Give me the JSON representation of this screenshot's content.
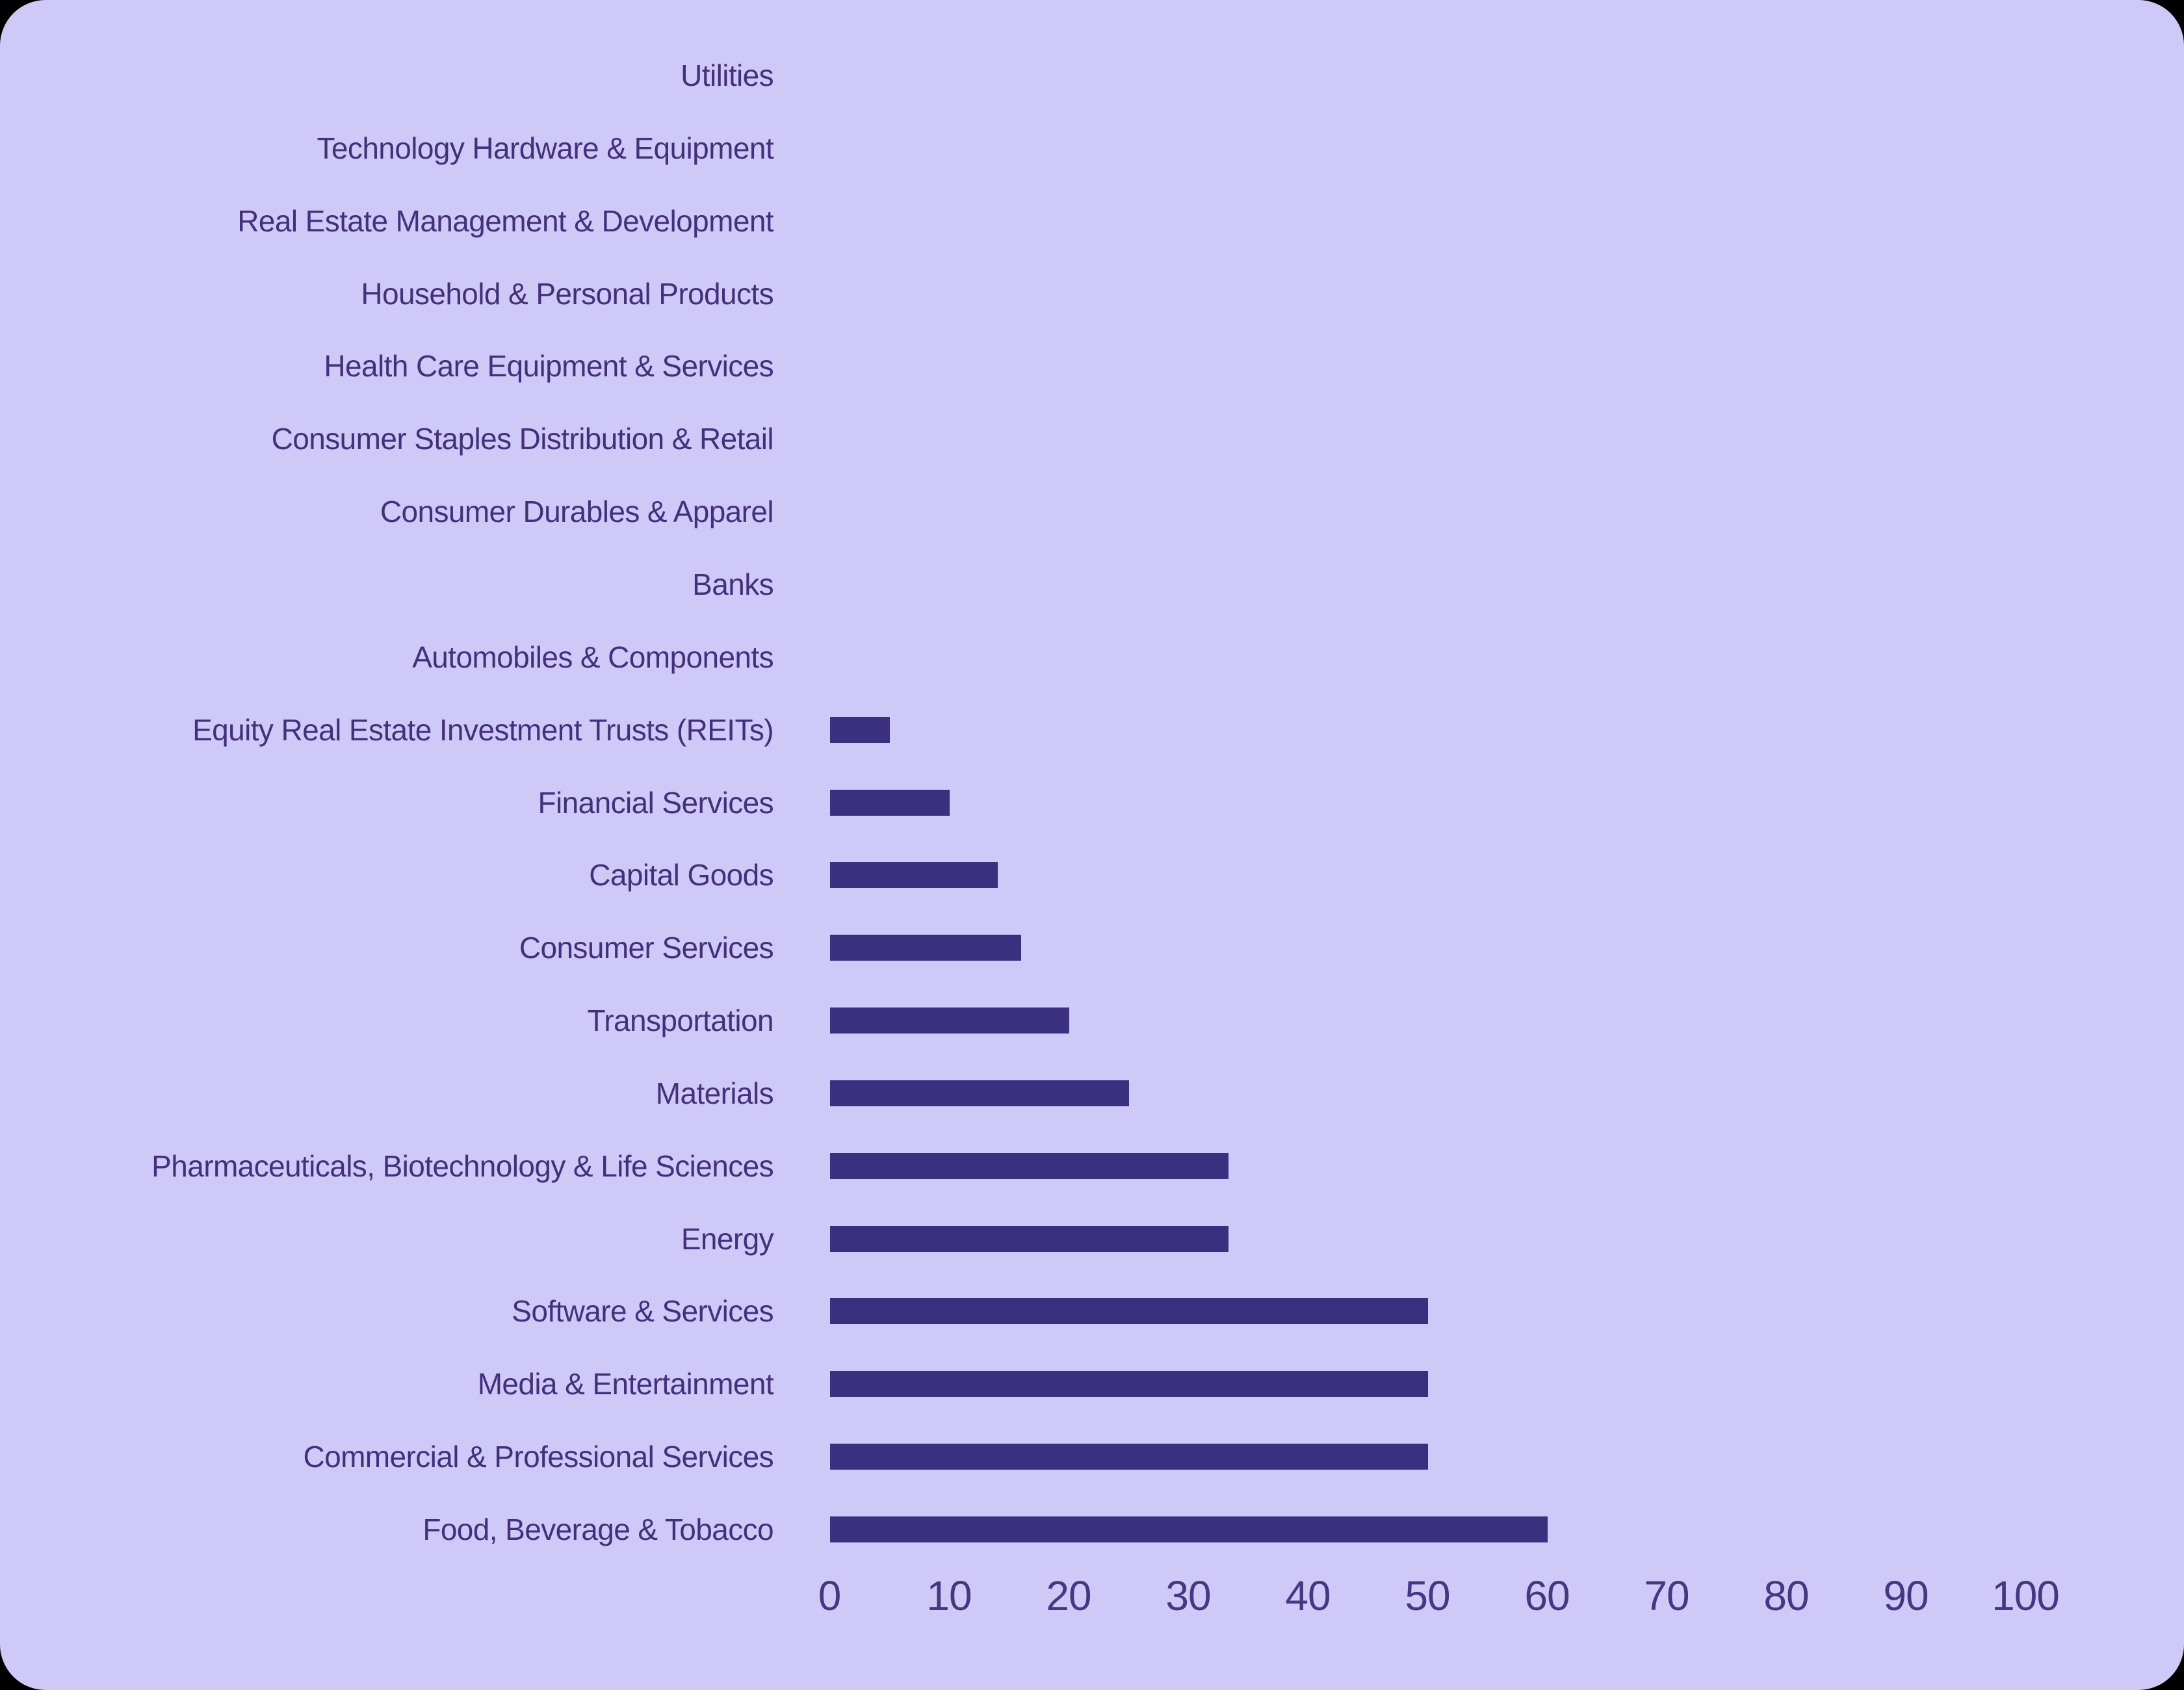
{
  "page": {
    "background": "#000000"
  },
  "panel": {
    "background": "#cfc9f8",
    "corner_radius": "70px"
  },
  "chart_data": {
    "type": "bar",
    "orientation": "horizontal",
    "title": "",
    "xlabel": "",
    "ylabel": "",
    "xlim": [
      0,
      100
    ],
    "x_ticks": [
      0,
      10,
      20,
      30,
      40,
      50,
      60,
      70,
      80,
      90,
      100
    ],
    "grid": false,
    "legend": false,
    "bar_color": "#3b2f80",
    "label_color": "#43307b",
    "tick_color": "#473680",
    "categories": [
      "Utilities",
      "Technology Hardware & Equipment",
      "Real Estate Management & Development",
      "Household & Personal Products",
      "Health Care Equipment & Services",
      "Consumer Staples Distribution & Retail",
      "Consumer Durables & Apparel",
      "Banks",
      "Automobiles & Components",
      "Equity Real Estate Investment Trusts (REITs)",
      "Financial Services",
      "Capital Goods",
      "Consumer Services",
      "Transportation",
      "Materials",
      "Pharmaceuticals, Biotechnology & Life Sciences",
      "Energy",
      "Software & Services",
      "Media & Entertainment",
      "Commercial & Professional Services",
      "Food, Beverage & Tobacco"
    ],
    "values": [
      0,
      0,
      0,
      0,
      0,
      0,
      0,
      0,
      0,
      5,
      10,
      14,
      16,
      20,
      25,
      33.3,
      33.3,
      50,
      50,
      50,
      60
    ]
  }
}
